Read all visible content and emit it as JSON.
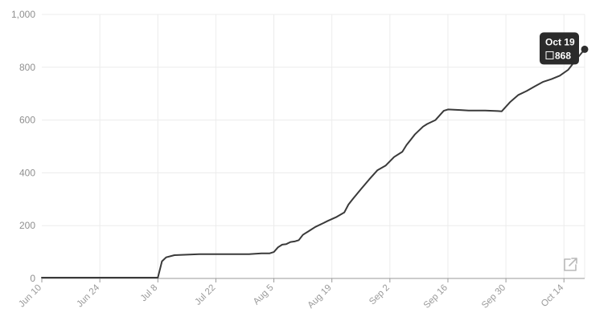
{
  "chart_data": {
    "type": "line",
    "title": "",
    "xlabel": "",
    "ylabel": "",
    "ylim": [
      0,
      1000
    ],
    "y_ticks": [
      0,
      200,
      400,
      600,
      800,
      1000
    ],
    "y_tick_labels": [
      "0",
      "200",
      "400",
      "600",
      "800",
      "1,000"
    ],
    "x_tick_labels": [
      "Jun 10",
      "Jun 24",
      "Jul 8",
      "Jul 22",
      "Aug 5",
      "Aug 19",
      "Sep 2",
      "Sep 16",
      "Sep 30",
      "Oct 14"
    ],
    "x_tick_dates": [
      "2019-06-10",
      "2019-06-24",
      "2019-07-08",
      "2019-07-22",
      "2019-08-05",
      "2019-08-19",
      "2019-09-02",
      "2019-09-16",
      "2019-09-30",
      "2019-10-14"
    ],
    "xlim": [
      "2019-06-10",
      "2019-10-19"
    ],
    "grid": true,
    "series": [
      {
        "color": "#3a3a3a",
        "x": [
          "2019-06-10",
          "2019-07-07",
          "2019-07-08",
          "2019-07-09",
          "2019-07-10",
          "2019-07-12",
          "2019-07-15",
          "2019-07-18",
          "2019-07-22",
          "2019-07-25",
          "2019-07-30",
          "2019-08-02",
          "2019-08-04",
          "2019-08-05",
          "2019-08-06",
          "2019-08-07",
          "2019-08-08",
          "2019-08-09",
          "2019-08-10",
          "2019-08-11",
          "2019-08-12",
          "2019-08-14",
          "2019-08-15",
          "2019-08-17",
          "2019-08-18",
          "2019-08-20",
          "2019-08-22",
          "2019-08-23",
          "2019-08-24",
          "2019-08-26",
          "2019-08-28",
          "2019-08-30",
          "2019-09-01",
          "2019-09-03",
          "2019-09-05",
          "2019-09-06",
          "2019-09-08",
          "2019-09-10",
          "2019-09-11",
          "2019-09-13",
          "2019-09-15",
          "2019-09-16",
          "2019-09-19",
          "2019-09-21",
          "2019-09-25",
          "2019-09-28",
          "2019-09-29",
          "2019-10-01",
          "2019-10-03",
          "2019-10-05",
          "2019-10-07",
          "2019-10-09",
          "2019-10-11",
          "2019-10-13",
          "2019-10-15",
          "2019-10-17",
          "2019-10-19"
        ],
        "values": [
          3,
          3,
          3,
          65,
          80,
          88,
          90,
          92,
          92,
          92,
          92,
          95,
          95,
          100,
          118,
          128,
          130,
          138,
          140,
          145,
          165,
          185,
          195,
          210,
          218,
          232,
          250,
          280,
          300,
          338,
          375,
          410,
          428,
          460,
          480,
          505,
          545,
          575,
          585,
          600,
          635,
          640,
          638,
          636,
          636,
          634,
          633,
          668,
          695,
          710,
          728,
          745,
          755,
          768,
          790,
          830,
          868
        ]
      }
    ],
    "tooltip": {
      "date": "Oct 19",
      "value": "868"
    },
    "icons": {
      "open_external": "open-external-icon"
    }
  }
}
